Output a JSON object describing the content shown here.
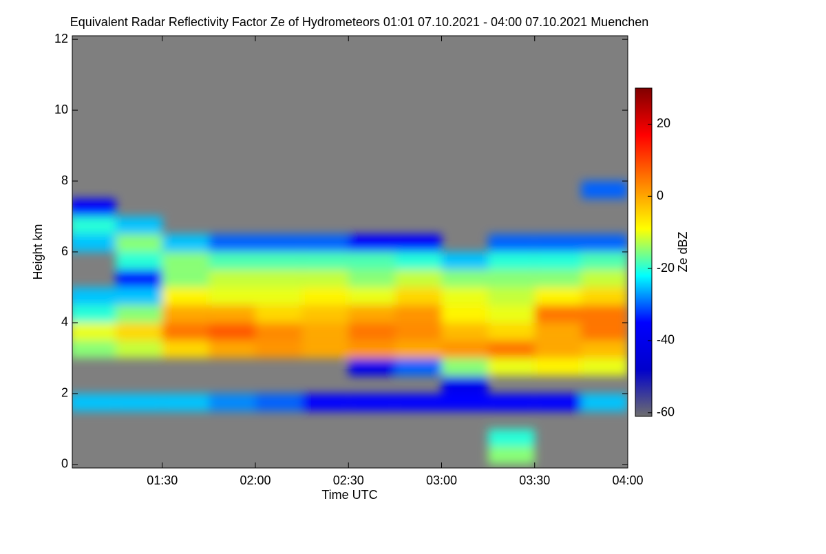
{
  "chart_data": {
    "type": "heatmap",
    "title": "Equivalent Radar Reflectivity Factor Ze of Hydrometeors   01:01 07.10.2021 - 04:00 07.10.2021 Muenchen",
    "x_label": "Time UTC",
    "y_label": "Height km",
    "colorbar_label": "Ze dBZ",
    "xlim": [
      "01:01",
      "04:00"
    ],
    "xticks": [
      "01:30",
      "02:00",
      "02:30",
      "03:00",
      "03:30",
      "04:00"
    ],
    "ylim": [
      -0.1,
      12.1
    ],
    "yticks": [
      0,
      2,
      4,
      6,
      8,
      10,
      12
    ],
    "zlim": [
      -61,
      30
    ],
    "zticks": [
      20,
      0,
      -20,
      -40,
      -60
    ],
    "colormap": [
      "#6e6e6e",
      "#0000cc",
      "#0000ff",
      "#00ffff",
      "#ffff00",
      "#ff8000",
      "#ff0000",
      "#800000"
    ],
    "background": "#7f7f7f",
    "x_edges": [
      "01:00",
      "01:15",
      "01:30",
      "01:45",
      "02:00",
      "02:15",
      "02:30",
      "02:45",
      "03:00",
      "03:15",
      "03:30",
      "03:45",
      "04:00"
    ],
    "y_edges": [
      0,
      0.5,
      1,
      1.5,
      2,
      2.5,
      3,
      3.5,
      4,
      4.5,
      5,
      5.5,
      6,
      6.5,
      7,
      7.5,
      8
    ],
    "z": [
      [
        null,
        null,
        null,
        null,
        null,
        null,
        null,
        null,
        null,
        -15,
        null,
        null
      ],
      [
        null,
        null,
        null,
        null,
        null,
        null,
        null,
        null,
        null,
        -20,
        null,
        null
      ],
      [
        null,
        null,
        null,
        null,
        null,
        null,
        null,
        null,
        null,
        null,
        null,
        null
      ],
      [
        -25,
        -25,
        -25,
        -28,
        -30,
        -35,
        -35,
        -35,
        -35,
        -35,
        -35,
        -25
      ],
      [
        null,
        null,
        null,
        null,
        null,
        null,
        null,
        null,
        -40,
        null,
        null,
        null
      ],
      [
        null,
        null,
        null,
        null,
        null,
        null,
        -40,
        -30,
        -15,
        -10,
        -8,
        -10
      ],
      [
        -15,
        -12,
        -5,
        0,
        2,
        0,
        2,
        0,
        2,
        5,
        0,
        -2
      ],
      [
        -10,
        -5,
        5,
        8,
        3,
        0,
        5,
        3,
        -2,
        -5,
        0,
        5
      ],
      [
        -20,
        -15,
        0,
        0,
        -5,
        -3,
        0,
        2,
        -8,
        -10,
        5,
        5
      ],
      [
        -25,
        -25,
        -8,
        -10,
        -10,
        -8,
        -10,
        -5,
        -10,
        -12,
        -8,
        -5
      ],
      [
        null,
        -35,
        -15,
        -12,
        -12,
        -12,
        -15,
        -12,
        -15,
        -15,
        -15,
        -12
      ],
      [
        null,
        -20,
        -15,
        -18,
        -18,
        -18,
        -18,
        -20,
        -25,
        -20,
        -20,
        -18
      ],
      [
        -25,
        -15,
        -25,
        -30,
        -30,
        -30,
        -35,
        -35,
        null,
        -30,
        -30,
        -30
      ],
      [
        -20,
        -25,
        null,
        null,
        null,
        null,
        null,
        null,
        null,
        null,
        null,
        null
      ],
      [
        -35,
        null,
        null,
        null,
        null,
        null,
        null,
        null,
        null,
        null,
        null,
        null
      ],
      [
        null,
        null,
        null,
        null,
        null,
        null,
        null,
        null,
        null,
        null,
        null,
        -30
      ]
    ]
  }
}
